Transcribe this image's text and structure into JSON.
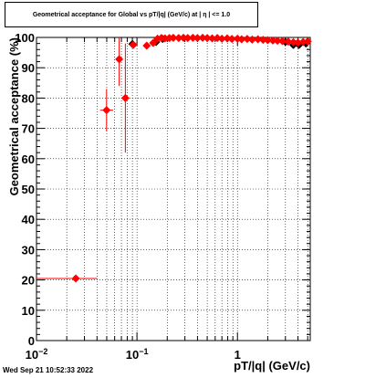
{
  "title": "Geometrical acceptance for Global vs pT/|q| (GeV/c) at |  η  | <= 1.0",
  "timestamp": "Wed Sep 21 10:52:33 2022",
  "chart_data": {
    "type": "scatter",
    "title": "Geometrical acceptance for Global vs pT/|q| (GeV/c) at |  η  | <= 1.0",
    "xlabel": "pT/|q| (GeV/c)",
    "ylabel": "Geometrical acceptance (%)",
    "xscale": "log",
    "xlim": [
      0.01,
      5.3
    ],
    "ylim": [
      0,
      100
    ],
    "grid": true,
    "x_ticks": [
      {
        "value": 0.01,
        "base": "10",
        "exp": "−2"
      },
      {
        "value": 0.1,
        "base": "10",
        "exp": "−1"
      },
      {
        "value": 1,
        "base": "1",
        "exp": ""
      }
    ],
    "y_ticks": [
      "0",
      "10",
      "20",
      "30",
      "40",
      "50",
      "60",
      "70",
      "80",
      "90",
      "100"
    ],
    "series": [
      {
        "color": "#000000",
        "points": [
          {
            "x": 0.09,
            "y": 97.8
          },
          {
            "x": 0.155,
            "y": 98.5
          },
          {
            "x": 0.18,
            "y": 99.5
          },
          {
            "x": 3.0,
            "y": 98.5
          },
          {
            "x": 3.6,
            "y": 97.5
          },
          {
            "x": 4.1,
            "y": 97.5
          },
          {
            "x": 4.8,
            "y": 98.0
          }
        ]
      },
      {
        "color": "#ff0000",
        "points": [
          {
            "x": 0.0246,
            "y": 20.5,
            "xlo": 0.01,
            "xhi": 0.04
          },
          {
            "x": 0.0498,
            "y": 76.0,
            "xlo": 0.043,
            "xhi": 0.058,
            "ylo": 69,
            "yhi": 83
          },
          {
            "x": 0.0665,
            "y": 92.8,
            "xlo": 0.062,
            "xhi": 0.072,
            "ylo": 84,
            "yhi": 100
          },
          {
            "x": 0.0766,
            "y": 80.0,
            "xlo": 0.073,
            "xhi": 0.081,
            "ylo": 62,
            "yhi": 98
          },
          {
            "x": 0.092,
            "y": 97.6
          },
          {
            "x": 0.125,
            "y": 97.3
          },
          {
            "x": 0.145,
            "y": 98.2
          },
          {
            "x": 0.16,
            "y": 99.6
          },
          {
            "x": 0.175,
            "y": 99.8
          },
          {
            "x": 0.19,
            "y": 99.7
          },
          {
            "x": 0.21,
            "y": 99.8
          },
          {
            "x": 0.23,
            "y": 99.9
          },
          {
            "x": 0.26,
            "y": 99.8
          },
          {
            "x": 0.29,
            "y": 99.9
          },
          {
            "x": 0.32,
            "y": 99.8
          },
          {
            "x": 0.36,
            "y": 99.9
          },
          {
            "x": 0.4,
            "y": 99.8
          },
          {
            "x": 0.45,
            "y": 99.9
          },
          {
            "x": 0.5,
            "y": 99.8
          },
          {
            "x": 0.56,
            "y": 99.7
          },
          {
            "x": 0.63,
            "y": 99.8
          },
          {
            "x": 0.7,
            "y": 99.6
          },
          {
            "x": 0.79,
            "y": 99.7
          },
          {
            "x": 0.88,
            "y": 99.5
          },
          {
            "x": 1.0,
            "y": 99.6
          },
          {
            "x": 1.1,
            "y": 99.4
          },
          {
            "x": 1.25,
            "y": 99.5
          },
          {
            "x": 1.4,
            "y": 99.3
          },
          {
            "x": 1.6,
            "y": 99.4
          },
          {
            "x": 1.8,
            "y": 99.2
          },
          {
            "x": 2.0,
            "y": 99.1
          },
          {
            "x": 2.25,
            "y": 99.0
          },
          {
            "x": 2.5,
            "y": 98.9
          },
          {
            "x": 2.8,
            "y": 98.8
          },
          {
            "x": 3.2,
            "y": 98.6
          },
          {
            "x": 3.6,
            "y": 98.4
          },
          {
            "x": 4.0,
            "y": 98.3
          },
          {
            "x": 4.5,
            "y": 98.5
          },
          {
            "x": 5.0,
            "y": 98.7
          }
        ]
      }
    ]
  }
}
